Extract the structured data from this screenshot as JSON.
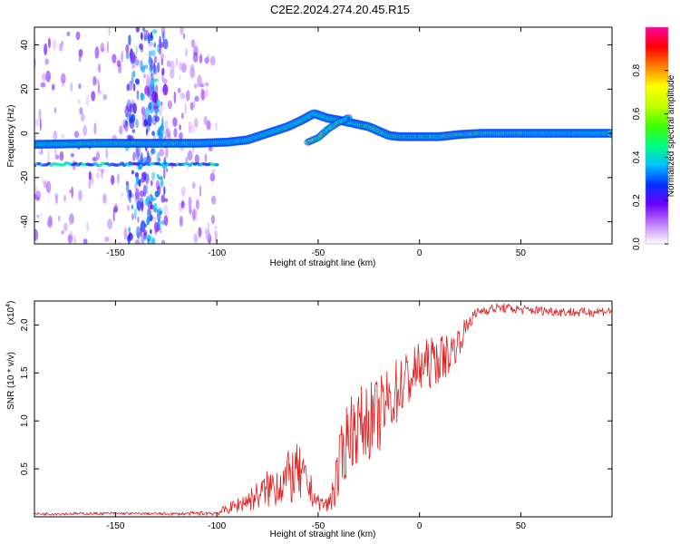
{
  "chart_data": [
    {
      "type": "heatmap",
      "title": "C2E2.2024.274.20.45.R15",
      "xlabel": "Height of straight line (km)",
      "ylabel": "Frequency (Hz)",
      "xlim": [
        -190,
        95
      ],
      "ylim": [
        -50,
        48
      ],
      "xticks": [
        "-150",
        "-100",
        "-50",
        "0",
        "50"
      ],
      "yticks": [
        "-40",
        "-20",
        "0",
        "20",
        "40"
      ],
      "colorbar": {
        "label": "Normalized spectral amplitude",
        "range": [
          0,
          1
        ],
        "ticks": [
          "0.0",
          "0.2",
          "0.4",
          "0.6",
          "0.8"
        ],
        "colors": [
          "#ffffff",
          "#c080ff",
          "#7000ff",
          "#0030ff",
          "#00c0ff",
          "#00ff80",
          "#40ff00",
          "#c0ff00",
          "#ffff00",
          "#ff8000",
          "#ff0000",
          "#ff00a0"
        ]
      },
      "main_trace": {
        "x": [
          -190,
          -160,
          -130,
          -110,
          -95,
          -85,
          -75,
          -65,
          -58,
          -52,
          -46,
          -40,
          -35,
          -30,
          -25,
          -20,
          -15,
          -10,
          0,
          10,
          20,
          30,
          50,
          70,
          95
        ],
        "y": [
          -5,
          -4.5,
          -4.5,
          -4.5,
          -4,
          -3,
          0,
          3,
          6,
          9,
          7,
          6,
          5,
          4,
          3,
          1,
          -1,
          -1.5,
          -1.5,
          -1.5,
          -0.5,
          0,
          0,
          0,
          0
        ],
        "amplitude": [
          0.45,
          0.5,
          0.5,
          0.45,
          0.45,
          0.5,
          0.5,
          0.55,
          0.6,
          0.65,
          0.6,
          0.55,
          0.7,
          0.8,
          0.75,
          0.7,
          0.75,
          0.85,
          0.8,
          0.75,
          0.7,
          0.6,
          0.45,
          0.4,
          0.4
        ]
      },
      "secondary_trace": {
        "x": [
          -55,
          -50,
          -45,
          -40,
          -35
        ],
        "y": [
          -4,
          -2,
          2,
          5,
          7
        ],
        "amplitude": [
          0.6,
          0.55,
          0.5,
          0.5,
          0.45
        ]
      },
      "side_band": {
        "x": [
          -190,
          -130,
          -100
        ],
        "y": -14,
        "amplitude": 0.3
      },
      "noise_regions": [
        {
          "x": [
            -190,
            -100
          ],
          "y": [
            -50,
            48
          ],
          "amplitude": 0.08
        },
        {
          "x": [
            -145,
            -125
          ],
          "y": [
            -50,
            48
          ],
          "amplitude": 0.2
        }
      ]
    },
    {
      "type": "line",
      "title": "",
      "xlabel": "Height of straight line (km)",
      "ylabel": "SNR (10 * v/v)",
      "exponent_label": "(x10",
      "exponent_power": "4",
      "xlim": [
        -190,
        95
      ],
      "ylim": [
        0,
        22500
      ],
      "xticks": [
        "-150",
        "-100",
        "-50",
        "0",
        "50"
      ],
      "yticks": [
        "0.5",
        "1.0",
        "1.5",
        "2.0"
      ],
      "color": "#e02020",
      "series": [
        {
          "x": [
            -190,
            -150,
            -120,
            -100,
            -90,
            -80,
            -70,
            -60,
            -55,
            -50,
            -45,
            -40,
            -35,
            -30,
            -20,
            -10,
            0,
            10,
            15,
            20,
            25,
            30,
            40,
            50,
            60,
            80,
            95
          ],
          "y": [
            300,
            350,
            300,
            400,
            1200,
            2200,
            3500,
            4500,
            3200,
            1500,
            1200,
            4500,
            9000,
            9500,
            10500,
            13500,
            15500,
            16500,
            17000,
            18500,
            20500,
            21500,
            21800,
            21600,
            21500,
            21300,
            21500
          ],
          "noise": [
            150,
            150,
            150,
            300,
            800,
            1500,
            2500,
            3200,
            2000,
            800,
            900,
            3500,
            4000,
            4000,
            4000,
            3500,
            2800,
            2500,
            2200,
            1500,
            800,
            600,
            500,
            500,
            500,
            500,
            500
          ]
        }
      ]
    }
  ]
}
